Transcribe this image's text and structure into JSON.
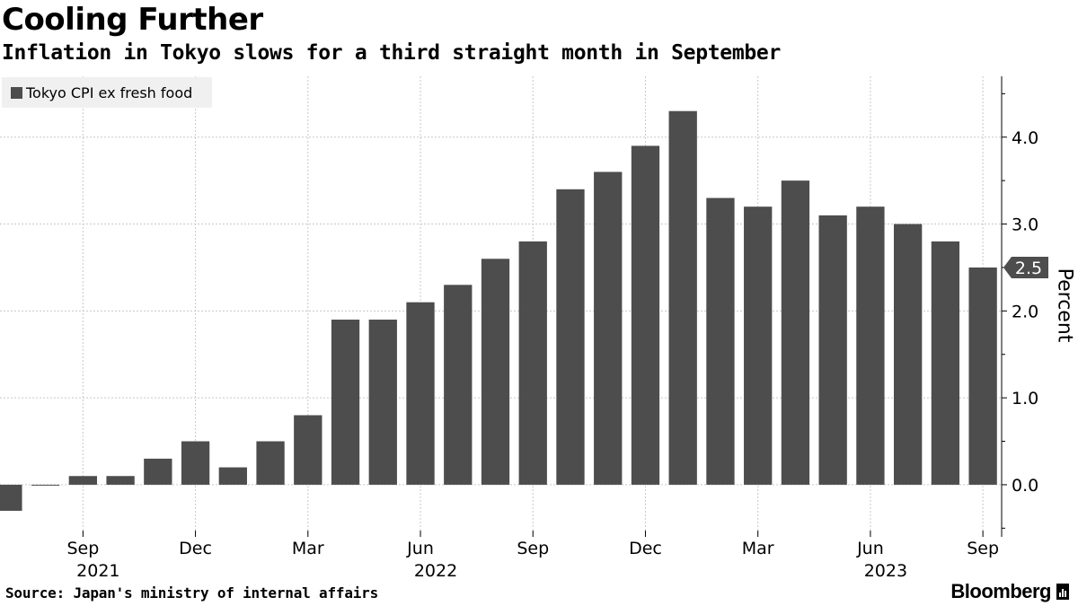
{
  "header": {
    "title": "Cooling Further",
    "subtitle": "Inflation in Tokyo slows for a third straight month in September"
  },
  "footer": {
    "source": "Source: Japan's ministry of internal affairs",
    "brand": "Bloomberg"
  },
  "colors": {
    "bar": "#4d4d4d",
    "grid": "#c8c8c8",
    "legend_bg": "#f0f0f0",
    "callout": "#4d4d4d"
  },
  "chart_data": {
    "type": "bar",
    "title": "Cooling Further",
    "subtitle": "Inflation in Tokyo slows for a third straight month in September",
    "ylabel": "Percent",
    "xlabel": "",
    "ylim": [
      -0.6,
      4.7
    ],
    "yticks": [
      0.0,
      1.0,
      2.0,
      3.0,
      4.0
    ],
    "ytick_labels": [
      "0.0",
      "1.0",
      "2.0",
      "3.0",
      "4.0"
    ],
    "grid": true,
    "legend_position": "top-left",
    "y_axis_side": "right",
    "categories": [
      "2021-07",
      "2021-08",
      "2021-09",
      "2021-10",
      "2021-11",
      "2021-12",
      "2022-01",
      "2022-02",
      "2022-03",
      "2022-04",
      "2022-05",
      "2022-06",
      "2022-07",
      "2022-08",
      "2022-09",
      "2022-10",
      "2022-11",
      "2022-12",
      "2023-01",
      "2023-02",
      "2023-03",
      "2023-04",
      "2023-05",
      "2023-06",
      "2023-07",
      "2023-08",
      "2023-09"
    ],
    "series": [
      {
        "name": "Tokyo CPI ex fresh food",
        "values": [
          -0.3,
          0.0,
          0.1,
          0.1,
          0.3,
          0.5,
          0.2,
          0.5,
          0.8,
          1.9,
          1.9,
          2.1,
          2.3,
          2.6,
          2.8,
          3.4,
          3.6,
          3.9,
          4.3,
          3.3,
          3.2,
          3.5,
          3.1,
          3.2,
          3.0,
          2.8,
          2.5
        ]
      }
    ],
    "x_tick_labels": [
      {
        "category": "2021-09",
        "month": "Sep",
        "year": "2021"
      },
      {
        "category": "2021-12",
        "month": "Dec",
        "year": ""
      },
      {
        "category": "2022-03",
        "month": "Mar",
        "year": ""
      },
      {
        "category": "2022-06",
        "month": "Jun",
        "year": "2022"
      },
      {
        "category": "2022-09",
        "month": "Sep",
        "year": ""
      },
      {
        "category": "2022-12",
        "month": "Dec",
        "year": ""
      },
      {
        "category": "2023-03",
        "month": "Mar",
        "year": ""
      },
      {
        "category": "2023-06",
        "month": "Jun",
        "year": "2023"
      },
      {
        "category": "2023-09",
        "month": "Sep",
        "year": ""
      }
    ],
    "last_value_callout": "2.5"
  }
}
